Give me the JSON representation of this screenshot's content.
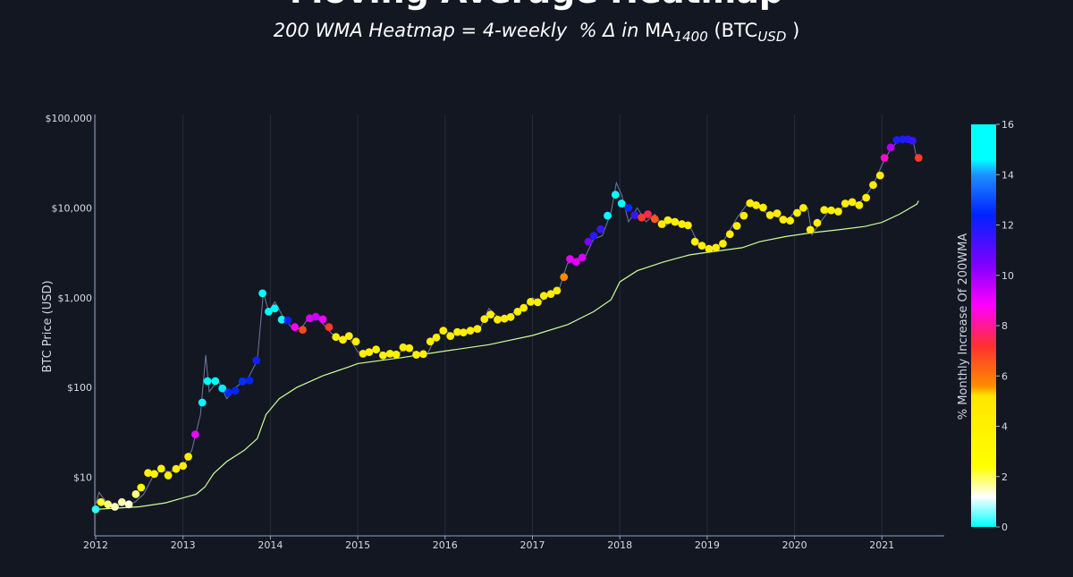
{
  "header": {
    "title_partial": "Moving Average Heatmap",
    "subtitle_lhs": "200 WMA Heatmap = 4-weekly",
    "subtitle_pct": "% Δ",
    "subtitle_in": "in",
    "subtitle_ma": "MA",
    "subtitle_ma_sub": "1400",
    "subtitle_btc": "(BTC",
    "subtitle_btc_sub": "USD",
    "subtitle_close": ")"
  },
  "chart_data": {
    "type": "scatter",
    "ylabel": "BTC Price (USD)",
    "yscale": "log",
    "ylim": [
      2.0,
      120000
    ],
    "xlim": [
      2012.0,
      2021.7
    ],
    "x_ticks": [
      "2012",
      "2013",
      "2014",
      "2015",
      "2016",
      "2017",
      "2018",
      "2019",
      "2020",
      "2021"
    ],
    "y_ticks": [
      {
        "value": 10,
        "label": "$10"
      },
      {
        "value": 100,
        "label": "$100"
      },
      {
        "value": 1000,
        "label": "$1,000"
      },
      {
        "value": 10000,
        "label": "$10,000"
      },
      {
        "value": 100000,
        "label": "$100,000"
      }
    ],
    "colorbar": {
      "label": "% Monthly Increase Of 200WMA",
      "range": [
        0,
        16
      ],
      "ticks": [
        "0",
        "2",
        "4",
        "6",
        "8",
        "10",
        "12",
        "14",
        "16"
      ],
      "stops": [
        {
          "v": 0,
          "c": "#00ffff"
        },
        {
          "v": 1.2,
          "c": "#ffffff"
        },
        {
          "v": 2.4,
          "c": "#ffff00"
        },
        {
          "v": 5.2,
          "c": "#ffe600"
        },
        {
          "v": 5.6,
          "c": "#ff8c00"
        },
        {
          "v": 7.2,
          "c": "#ff3030"
        },
        {
          "v": 8.8,
          "c": "#ff00ff"
        },
        {
          "v": 10.4,
          "c": "#8000ff"
        },
        {
          "v": 12.4,
          "c": "#0022ff"
        },
        {
          "v": 14.0,
          "c": "#1e90ff"
        },
        {
          "v": 14.6,
          "c": "#00ffff"
        },
        {
          "v": 16,
          "c": "#00ffff"
        }
      ]
    },
    "price_line_color": "#6b7a9e",
    "ma_line_color": "#ccff99",
    "ma200": [
      [
        2012.0,
        4.4
      ],
      [
        2012.5,
        4.7
      ],
      [
        2012.8,
        5.2
      ],
      [
        2013.0,
        5.9
      ],
      [
        2013.15,
        6.5
      ],
      [
        2013.25,
        7.8
      ],
      [
        2013.35,
        11
      ],
      [
        2013.5,
        15
      ],
      [
        2013.7,
        20
      ],
      [
        2013.85,
        27
      ],
      [
        2013.95,
        50
      ],
      [
        2014.1,
        75
      ],
      [
        2014.3,
        100
      ],
      [
        2014.6,
        135
      ],
      [
        2014.9,
        170
      ],
      [
        2015.0,
        185
      ],
      [
        2015.5,
        215
      ],
      [
        2016.0,
        255
      ],
      [
        2016.5,
        300
      ],
      [
        2017.0,
        380
      ],
      [
        2017.4,
        500
      ],
      [
        2017.7,
        700
      ],
      [
        2017.9,
        950
      ],
      [
        2018.0,
        1500
      ],
      [
        2018.2,
        2000
      ],
      [
        2018.5,
        2500
      ],
      [
        2018.8,
        3000
      ],
      [
        2019.0,
        3200
      ],
      [
        2019.4,
        3600
      ],
      [
        2019.6,
        4200
      ],
      [
        2019.9,
        4800
      ],
      [
        2020.2,
        5300
      ],
      [
        2020.5,
        5700
      ],
      [
        2020.8,
        6200
      ],
      [
        2021.0,
        6900
      ],
      [
        2021.2,
        8500
      ],
      [
        2021.4,
        11000
      ],
      [
        2021.42,
        12000
      ]
    ],
    "price": [
      [
        2012.0,
        5
      ],
      [
        2012.04,
        6.8
      ],
      [
        2012.08,
        6
      ],
      [
        2012.15,
        5
      ],
      [
        2012.25,
        4.9
      ],
      [
        2012.35,
        5
      ],
      [
        2012.45,
        5.3
      ],
      [
        2012.55,
        6.5
      ],
      [
        2012.65,
        10
      ],
      [
        2012.75,
        12
      ],
      [
        2012.85,
        11.5
      ],
      [
        2013.0,
        13
      ],
      [
        2013.1,
        20
      ],
      [
        2013.2,
        50
      ],
      [
        2013.26,
        230
      ],
      [
        2013.3,
        90
      ],
      [
        2013.4,
        120
      ],
      [
        2013.5,
        75
      ],
      [
        2013.6,
        100
      ],
      [
        2013.75,
        130
      ],
      [
        2013.85,
        200
      ],
      [
        2013.92,
        1150
      ],
      [
        2013.98,
        700
      ],
      [
        2014.05,
        900
      ],
      [
        2014.15,
        600
      ],
      [
        2014.25,
        460
      ],
      [
        2014.35,
        450
      ],
      [
        2014.45,
        620
      ],
      [
        2014.55,
        580
      ],
      [
        2014.7,
        400
      ],
      [
        2014.8,
        350
      ],
      [
        2014.9,
        360
      ],
      [
        2015.0,
        250
      ],
      [
        2015.1,
        235
      ],
      [
        2015.2,
        260
      ],
      [
        2015.35,
        235
      ],
      [
        2015.45,
        230
      ],
      [
        2015.55,
        280
      ],
      [
        2015.7,
        230
      ],
      [
        2015.8,
        240
      ],
      [
        2015.9,
        380
      ],
      [
        2016.0,
        430
      ],
      [
        2016.1,
        380
      ],
      [
        2016.2,
        420
      ],
      [
        2016.4,
        450
      ],
      [
        2016.5,
        760
      ],
      [
        2016.6,
        620
      ],
      [
        2016.7,
        600
      ],
      [
        2016.8,
        700
      ],
      [
        2016.9,
        780
      ],
      [
        2017.0,
        1000
      ],
      [
        2017.1,
        900
      ],
      [
        2017.2,
        1150
      ],
      [
        2017.3,
        1200
      ],
      [
        2017.4,
        2400
      ],
      [
        2017.5,
        2700
      ],
      [
        2017.6,
        2800
      ],
      [
        2017.7,
        4500
      ],
      [
        2017.8,
        4900
      ],
      [
        2017.9,
        9000
      ],
      [
        2017.96,
        19000
      ],
      [
        2018.02,
        14000
      ],
      [
        2018.1,
        7000
      ],
      [
        2018.2,
        10000
      ],
      [
        2018.3,
        7000
      ],
      [
        2018.4,
        8500
      ],
      [
        2018.5,
        6000
      ],
      [
        2018.6,
        7500
      ],
      [
        2018.7,
        6500
      ],
      [
        2018.8,
        6300
      ],
      [
        2018.9,
        4000
      ],
      [
        2019.0,
        3600
      ],
      [
        2019.1,
        3500
      ],
      [
        2019.2,
        4500
      ],
      [
        2019.35,
        8000
      ],
      [
        2019.5,
        12500
      ],
      [
        2019.6,
        10000
      ],
      [
        2019.7,
        8500
      ],
      [
        2019.8,
        8000
      ],
      [
        2019.9,
        7000
      ],
      [
        2020.0,
        9000
      ],
      [
        2020.15,
        10000
      ],
      [
        2020.2,
        5000
      ],
      [
        2020.3,
        7000
      ],
      [
        2020.4,
        9500
      ],
      [
        2020.5,
        9000
      ],
      [
        2020.6,
        11500
      ],
      [
        2020.7,
        10500
      ],
      [
        2020.8,
        13000
      ],
      [
        2020.9,
        18000
      ],
      [
        2021.0,
        30000
      ],
      [
        2021.1,
        45000
      ],
      [
        2021.2,
        58000
      ],
      [
        2021.3,
        55000
      ],
      [
        2021.35,
        60000
      ],
      [
        2021.4,
        35000
      ],
      [
        2021.42,
        36000
      ]
    ],
    "points": [
      [
        2012.0,
        4.4,
        0.2
      ],
      [
        2012.06,
        5.3,
        2.2
      ],
      [
        2012.14,
        5.0,
        1.8
      ],
      [
        2012.22,
        4.7,
        1.5
      ],
      [
        2012.3,
        5.3,
        1.6
      ],
      [
        2012.38,
        5.0,
        1.4
      ],
      [
        2012.46,
        6.5,
        1.8
      ],
      [
        2012.52,
        7.7,
        2.8
      ],
      [
        2012.6,
        11.2,
        3.6
      ],
      [
        2012.67,
        10.9,
        3.8
      ],
      [
        2012.75,
        12.5,
        4.0
      ],
      [
        2012.83,
        10.5,
        4.2
      ],
      [
        2012.92,
        12.4,
        4.2
      ],
      [
        2013.0,
        13.4,
        4.3
      ],
      [
        2013.06,
        17,
        4.5
      ],
      [
        2013.14,
        30,
        9.0
      ],
      [
        2013.22,
        68,
        14.8
      ],
      [
        2013.28,
        118,
        15.0
      ],
      [
        2013.37,
        118,
        15.2
      ],
      [
        2013.45,
        98,
        14.5
      ],
      [
        2013.52,
        88,
        12.5
      ],
      [
        2013.6,
        92,
        12.3
      ],
      [
        2013.68,
        117,
        12.6
      ],
      [
        2013.76,
        120,
        12.4
      ],
      [
        2013.84,
        200,
        12.1
      ],
      [
        2013.91,
        1120,
        15.0
      ],
      [
        2013.98,
        700,
        15.0
      ],
      [
        2014.05,
        760,
        15.1
      ],
      [
        2014.13,
        570,
        14.9
      ],
      [
        2014.2,
        560,
        12.2
      ],
      [
        2014.28,
        470,
        8.8
      ],
      [
        2014.37,
        440,
        6.8
      ],
      [
        2014.45,
        590,
        9.3
      ],
      [
        2014.52,
        615,
        9.5
      ],
      [
        2014.6,
        575,
        9.0
      ],
      [
        2014.67,
        470,
        7.0
      ],
      [
        2014.75,
        365,
        4.3
      ],
      [
        2014.83,
        340,
        4.1
      ],
      [
        2014.9,
        375,
        4.3
      ],
      [
        2014.98,
        325,
        4.2
      ],
      [
        2015.06,
        238,
        3.9
      ],
      [
        2015.13,
        248,
        4.0
      ],
      [
        2015.21,
        265,
        4.1
      ],
      [
        2015.29,
        228,
        3.9
      ],
      [
        2015.37,
        238,
        4.0
      ],
      [
        2015.44,
        233,
        4.0
      ],
      [
        2015.52,
        280,
        4.2
      ],
      [
        2015.59,
        275,
        4.1
      ],
      [
        2015.67,
        232,
        4.0
      ],
      [
        2015.75,
        236,
        4.0
      ],
      [
        2015.83,
        325,
        4.2
      ],
      [
        2015.9,
        360,
        4.3
      ],
      [
        2015.98,
        430,
        4.3
      ],
      [
        2016.06,
        375,
        4.2
      ],
      [
        2016.14,
        415,
        4.3
      ],
      [
        2016.21,
        410,
        4.2
      ],
      [
        2016.29,
        430,
        4.2
      ],
      [
        2016.37,
        450,
        4.3
      ],
      [
        2016.45,
        580,
        4.4
      ],
      [
        2016.52,
        650,
        4.4
      ],
      [
        2016.6,
        570,
        4.4
      ],
      [
        2016.68,
        585,
        4.3
      ],
      [
        2016.75,
        610,
        4.4
      ],
      [
        2016.83,
        700,
        4.3
      ],
      [
        2016.9,
        770,
        4.4
      ],
      [
        2016.98,
        900,
        4.4
      ],
      [
        2017.06,
        890,
        4.4
      ],
      [
        2017.13,
        1050,
        4.5
      ],
      [
        2017.21,
        1100,
        4.5
      ],
      [
        2017.28,
        1200,
        4.6
      ],
      [
        2017.36,
        1700,
        5.6
      ],
      [
        2017.43,
        2700,
        9.1
      ],
      [
        2017.5,
        2500,
        9.2
      ],
      [
        2017.57,
        2800,
        9.3
      ],
      [
        2017.64,
        4200,
        10.5
      ],
      [
        2017.7,
        4900,
        11.8
      ],
      [
        2017.78,
        5800,
        11.5
      ],
      [
        2017.86,
        8200,
        14.8
      ],
      [
        2017.95,
        14000,
        15.0
      ],
      [
        2018.02,
        11200,
        14.9
      ],
      [
        2018.1,
        10000,
        12.5
      ],
      [
        2018.17,
        8300,
        11.5
      ],
      [
        2018.25,
        7800,
        7.0
      ],
      [
        2018.32,
        8500,
        7.5
      ],
      [
        2018.4,
        7500,
        6.5
      ],
      [
        2018.48,
        6600,
        4.5
      ],
      [
        2018.55,
        7300,
        4.2
      ],
      [
        2018.63,
        7000,
        4.3
      ],
      [
        2018.71,
        6600,
        4.3
      ],
      [
        2018.78,
        6400,
        4.2
      ],
      [
        2018.86,
        4200,
        4.0
      ],
      [
        2018.94,
        3800,
        4.0
      ],
      [
        2019.02,
        3500,
        4.1
      ],
      [
        2019.1,
        3600,
        4.0
      ],
      [
        2019.18,
        4000,
        4.1
      ],
      [
        2019.26,
        5100,
        4.2
      ],
      [
        2019.34,
        6300,
        4.3
      ],
      [
        2019.42,
        8200,
        4.4
      ],
      [
        2019.49,
        11300,
        4.5
      ],
      [
        2019.56,
        10700,
        4.4
      ],
      [
        2019.64,
        10100,
        4.3
      ],
      [
        2019.72,
        8300,
        4.2
      ],
      [
        2019.8,
        8700,
        4.2
      ],
      [
        2019.87,
        7400,
        4.1
      ],
      [
        2019.95,
        7200,
        4.1
      ],
      [
        2020.03,
        8800,
        4.2
      ],
      [
        2020.1,
        10000,
        4.3
      ],
      [
        2020.18,
        5700,
        4.0
      ],
      [
        2020.26,
        6800,
        4.1
      ],
      [
        2020.34,
        9500,
        4.2
      ],
      [
        2020.42,
        9400,
        4.2
      ],
      [
        2020.5,
        9100,
        4.2
      ],
      [
        2020.58,
        11200,
        4.3
      ],
      [
        2020.66,
        11600,
        4.3
      ],
      [
        2020.74,
        10700,
        4.3
      ],
      [
        2020.82,
        13000,
        4.3
      ],
      [
        2020.9,
        18000,
        4.5
      ],
      [
        2020.98,
        23000,
        4.6
      ],
      [
        2021.03,
        36000,
        8.3
      ],
      [
        2021.1,
        47000,
        9.8
      ],
      [
        2021.17,
        57000,
        11.9
      ],
      [
        2021.24,
        58000,
        12.0
      ],
      [
        2021.3,
        58000,
        11.8
      ],
      [
        2021.35,
        56000,
        11.5
      ],
      [
        2021.42,
        36000,
        7.0
      ]
    ]
  }
}
